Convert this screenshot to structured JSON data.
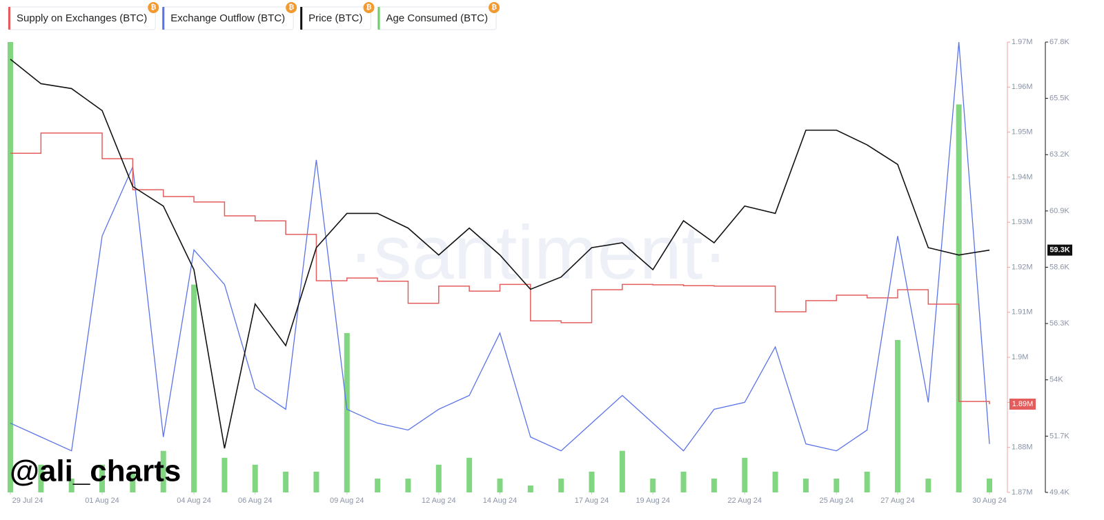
{
  "chart_data": {
    "type": "line",
    "x": [
      "2024-07-29",
      "2024-07-30",
      "2024-07-31",
      "2024-08-01",
      "2024-08-02",
      "2024-08-03",
      "2024-08-04",
      "2024-08-05",
      "2024-08-06",
      "2024-08-07",
      "2024-08-08",
      "2024-08-09",
      "2024-08-10",
      "2024-08-11",
      "2024-08-12",
      "2024-08-13",
      "2024-08-14",
      "2024-08-15",
      "2024-08-16",
      "2024-08-17",
      "2024-08-18",
      "2024-08-19",
      "2024-08-20",
      "2024-08-21",
      "2024-08-22",
      "2024-08-23",
      "2024-08-24",
      "2024-08-25",
      "2024-08-26",
      "2024-08-27",
      "2024-08-28",
      "2024-08-29",
      "2024-08-30"
    ],
    "xticks": [
      {
        "value": "2024-07-29",
        "label": "29 Jul 24"
      },
      {
        "value": "2024-08-01",
        "label": "01 Aug 24"
      },
      {
        "value": "2024-08-04",
        "label": "04 Aug 24"
      },
      {
        "value": "2024-08-06",
        "label": "06 Aug 24"
      },
      {
        "value": "2024-08-09",
        "label": "09 Aug 24"
      },
      {
        "value": "2024-08-12",
        "label": "12 Aug 24"
      },
      {
        "value": "2024-08-14",
        "label": "14 Aug 24"
      },
      {
        "value": "2024-08-17",
        "label": "17 Aug 24"
      },
      {
        "value": "2024-08-19",
        "label": "19 Aug 24"
      },
      {
        "value": "2024-08-22",
        "label": "22 Aug 24"
      },
      {
        "value": "2024-08-25",
        "label": "25 Aug 24"
      },
      {
        "value": "2024-08-27",
        "label": "27 Aug 24"
      },
      {
        "value": "2024-08-30",
        "label": "30 Aug 24"
      }
    ],
    "ylim": [
      1870000,
      1970000
    ],
    "yticks": [
      {
        "value": 1870000,
        "label": "1.87M"
      },
      {
        "value": 1880000,
        "label": "1.88M"
      },
      {
        "value": 1890000,
        "label": "1.89M"
      },
      {
        "value": 1900000,
        "label": "1.9M"
      },
      {
        "value": 1910000,
        "label": "1.91M"
      },
      {
        "value": 1920000,
        "label": "1.92M"
      },
      {
        "value": 1930000,
        "label": "1.93M"
      },
      {
        "value": 1940000,
        "label": "1.94M"
      },
      {
        "value": 1950000,
        "label": "1.95M"
      },
      {
        "value": 1960000,
        "label": "1.96M"
      },
      {
        "value": 1970000,
        "label": "1.97M"
      }
    ],
    "y2lim": [
      49400,
      67800
    ],
    "y2ticks": [
      {
        "value": 49400,
        "label": "49.4K"
      },
      {
        "value": 51700,
        "label": "51.7K"
      },
      {
        "value": 54000,
        "label": "54K"
      },
      {
        "value": 56300,
        "label": "56.3K"
      },
      {
        "value": 58600,
        "label": "58.6K"
      },
      {
        "value": 60900,
        "label": "60.9K"
      },
      {
        "value": 63200,
        "label": "63.2K"
      },
      {
        "value": 65500,
        "label": "65.5K"
      },
      {
        "value": 67800,
        "label": "67.8K"
      }
    ],
    "series": [
      {
        "name": "Supply on Exchanges (BTC)",
        "color": "#e45c5c",
        "style": "step",
        "current_label": "1.89M",
        "values": [
          1945300,
          1949800,
          1949800,
          1944100,
          1937200,
          1935700,
          1934500,
          1931400,
          1930300,
          1927300,
          1917000,
          1917600,
          1916900,
          1912000,
          1915800,
          1914700,
          1916200,
          1908100,
          1907700,
          1915000,
          1916200,
          1916100,
          1915900,
          1915800,
          1915800,
          1910100,
          1912600,
          1913800,
          1913200,
          1915000,
          1911800,
          1890200,
          1889600
        ]
      },
      {
        "name": "Exchange Outflow (BTC)",
        "color": "#5a73e8",
        "style": "free-line",
        "values": [
          10,
          8,
          6,
          37,
          47,
          8,
          35,
          30,
          15,
          12,
          48,
          12,
          10,
          9,
          12,
          14,
          23,
          8,
          6,
          10,
          14,
          10,
          6,
          12,
          13,
          21,
          7,
          6,
          9,
          37,
          13,
          65,
          7
        ]
      },
      {
        "name": "Price (BTC)",
        "color": "#111111",
        "style": "line",
        "axis": "y2",
        "current_label": "59.3K",
        "values": [
          67100,
          66100,
          65900,
          65000,
          61900,
          61100,
          58500,
          51200,
          57100,
          55400,
          59400,
          60800,
          60800,
          60200,
          59100,
          60200,
          59100,
          57700,
          58200,
          59400,
          59600,
          58500,
          60500,
          59600,
          61100,
          60800,
          64200,
          64200,
          63600,
          62800,
          59400,
          59100,
          59300
        ]
      },
      {
        "name": "Age Consumed (BTC)",
        "color": "#6ccf6c",
        "style": "free-bar",
        "values": [
          65,
          4,
          2,
          4,
          3,
          6,
          30,
          5,
          4,
          3,
          3,
          23,
          2,
          2,
          4,
          5,
          2,
          1,
          2,
          3,
          6,
          2,
          3,
          2,
          5,
          3,
          2,
          2,
          3,
          22,
          2,
          56,
          2
        ]
      }
    ],
    "watermark": "·santiment·",
    "credit": "@ali_charts"
  }
}
